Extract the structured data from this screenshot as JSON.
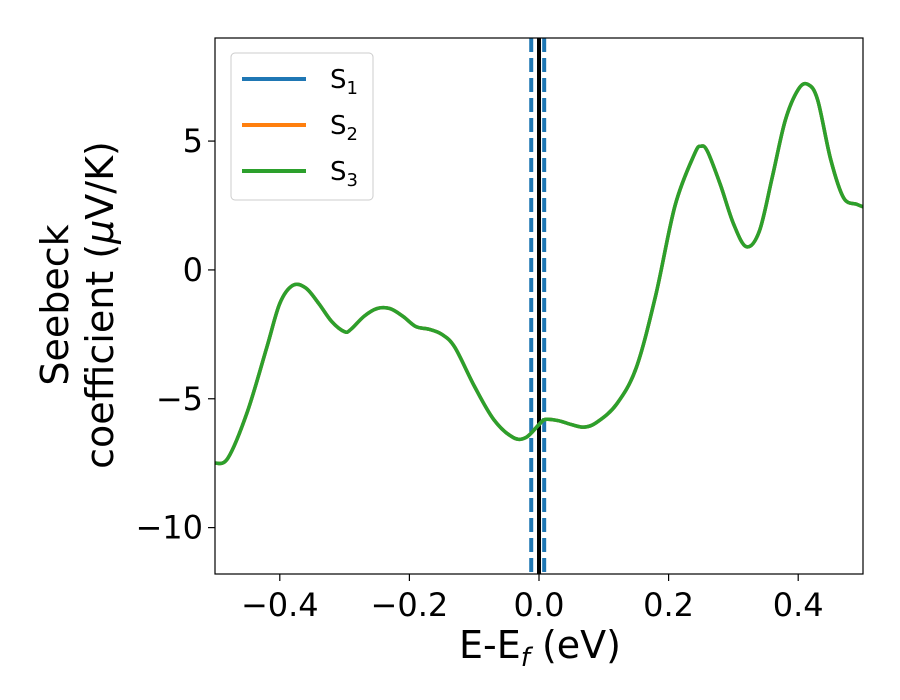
{
  "chart_data": {
    "type": "line",
    "xlabel": "E-E",
    "xlabel_sub": "f",
    "xlabel_unit": " (eV)",
    "ylabel_line1": "Seebeck",
    "ylabel_line2_prefix": "coefficient  (",
    "ylabel_line2_mu": "μ",
    "ylabel_line2_suffix": "V/K)",
    "xlim": [
      -0.5,
      0.5
    ],
    "ylim": [
      -11.8,
      9.0
    ],
    "xticks": [
      -0.4,
      -0.2,
      0.0,
      0.2,
      0.4
    ],
    "xtick_labels": [
      "−0.4",
      "−0.2",
      "0.0",
      "0.2",
      "0.4"
    ],
    "yticks": [
      -10,
      -5,
      0,
      5
    ],
    "ytick_labels": [
      "−10",
      "−5",
      "0",
      "5"
    ],
    "grid": false,
    "legend_placement": "upper-left",
    "vertical_lines": [
      {
        "x": -0.012,
        "style": "dashed",
        "color": "#1f77b4"
      },
      {
        "x": 0.0,
        "style": "solid",
        "color": "#000000"
      },
      {
        "x": 0.008,
        "style": "dashed",
        "color": "#1f77b4"
      }
    ],
    "series": [
      {
        "name": "S",
        "sub": "1",
        "color": "#1f77b4",
        "x": [
          -0.5,
          -0.48,
          -0.45,
          -0.42,
          -0.4,
          -0.38,
          -0.36,
          -0.34,
          -0.32,
          -0.3,
          -0.29,
          -0.27,
          -0.25,
          -0.23,
          -0.21,
          -0.19,
          -0.17,
          -0.15,
          -0.13,
          -0.1,
          -0.07,
          -0.04,
          -0.02,
          0.0,
          0.01,
          0.03,
          0.05,
          0.07,
          0.09,
          0.12,
          0.15,
          0.18,
          0.21,
          0.24,
          0.25,
          0.26,
          0.28,
          0.3,
          0.32,
          0.34,
          0.36,
          0.38,
          0.4,
          0.415,
          0.43,
          0.45,
          0.47,
          0.49,
          0.5
        ],
        "y": [
          -7.5,
          -7.3,
          -5.5,
          -3.0,
          -1.3,
          -0.6,
          -0.7,
          -1.3,
          -2.0,
          -2.4,
          -2.3,
          -1.8,
          -1.5,
          -1.5,
          -1.8,
          -2.2,
          -2.3,
          -2.5,
          -3.0,
          -4.5,
          -5.8,
          -6.5,
          -6.5,
          -6.0,
          -5.8,
          -5.85,
          -6.0,
          -6.1,
          -5.9,
          -5.2,
          -3.8,
          -1.0,
          2.5,
          4.5,
          4.8,
          4.6,
          3.3,
          1.8,
          0.9,
          1.5,
          3.6,
          5.8,
          7.0,
          7.2,
          6.6,
          4.3,
          2.8,
          2.55,
          2.45
        ]
      },
      {
        "name": "S",
        "sub": "2",
        "color": "#ff7f0e",
        "x": [
          -0.5,
          -0.48,
          -0.45,
          -0.42,
          -0.4,
          -0.38,
          -0.36,
          -0.34,
          -0.32,
          -0.3,
          -0.29,
          -0.27,
          -0.25,
          -0.23,
          -0.21,
          -0.19,
          -0.17,
          -0.15,
          -0.13,
          -0.1,
          -0.07,
          -0.04,
          -0.02,
          0.0,
          0.01,
          0.03,
          0.05,
          0.07,
          0.09,
          0.12,
          0.15,
          0.18,
          0.21,
          0.24,
          0.25,
          0.26,
          0.28,
          0.3,
          0.32,
          0.34,
          0.36,
          0.38,
          0.4,
          0.415,
          0.43,
          0.45,
          0.47,
          0.49,
          0.5
        ],
        "y": [
          -7.5,
          -7.3,
          -5.5,
          -3.0,
          -1.3,
          -0.6,
          -0.7,
          -1.3,
          -2.0,
          -2.4,
          -2.3,
          -1.8,
          -1.5,
          -1.5,
          -1.8,
          -2.2,
          -2.3,
          -2.5,
          -3.0,
          -4.5,
          -5.8,
          -6.5,
          -6.5,
          -6.0,
          -5.8,
          -5.85,
          -6.0,
          -6.1,
          -5.9,
          -5.2,
          -3.8,
          -1.0,
          2.5,
          4.5,
          4.8,
          4.6,
          3.3,
          1.8,
          0.9,
          1.5,
          3.6,
          5.8,
          7.0,
          7.2,
          6.6,
          4.3,
          2.8,
          2.55,
          2.45
        ]
      },
      {
        "name": "S",
        "sub": "3",
        "color": "#2ca02c",
        "x": [
          -0.5,
          -0.48,
          -0.45,
          -0.42,
          -0.4,
          -0.38,
          -0.36,
          -0.34,
          -0.32,
          -0.3,
          -0.29,
          -0.27,
          -0.25,
          -0.23,
          -0.21,
          -0.19,
          -0.17,
          -0.15,
          -0.13,
          -0.1,
          -0.07,
          -0.04,
          -0.02,
          0.0,
          0.01,
          0.03,
          0.05,
          0.07,
          0.09,
          0.12,
          0.15,
          0.18,
          0.21,
          0.24,
          0.25,
          0.26,
          0.28,
          0.3,
          0.32,
          0.34,
          0.36,
          0.38,
          0.4,
          0.415,
          0.43,
          0.45,
          0.47,
          0.49,
          0.5
        ],
        "y": [
          -7.5,
          -7.3,
          -5.5,
          -3.0,
          -1.3,
          -0.6,
          -0.7,
          -1.3,
          -2.0,
          -2.4,
          -2.3,
          -1.8,
          -1.5,
          -1.5,
          -1.8,
          -2.2,
          -2.3,
          -2.5,
          -3.0,
          -4.5,
          -5.8,
          -6.5,
          -6.5,
          -6.0,
          -5.8,
          -5.85,
          -6.0,
          -6.1,
          -5.9,
          -5.2,
          -3.8,
          -1.0,
          2.5,
          4.5,
          4.8,
          4.6,
          3.3,
          1.8,
          0.9,
          1.5,
          3.6,
          5.8,
          7.0,
          7.2,
          6.6,
          4.3,
          2.8,
          2.55,
          2.45
        ]
      }
    ]
  }
}
